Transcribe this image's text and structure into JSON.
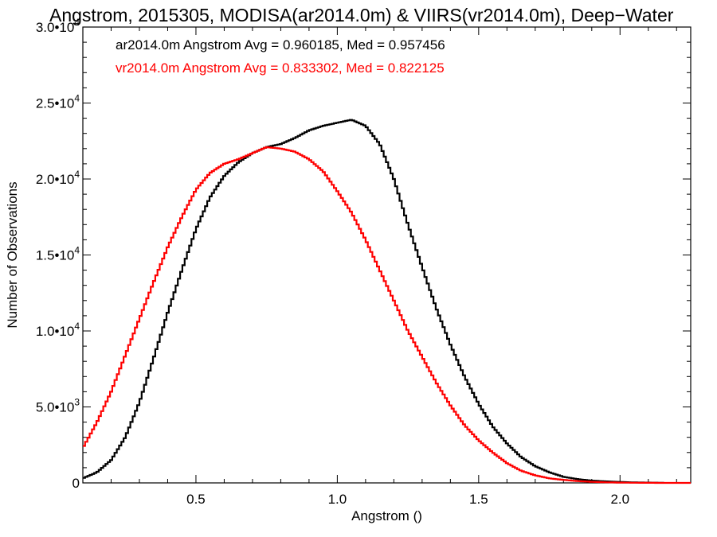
{
  "chart_data": {
    "type": "line",
    "title": "Angstrom, 2015305, MODISA(ar2014.0m) & VIIRS(vr2014.0m), Deep−Water",
    "xlabel": "Angstrom ()",
    "ylabel": "Number of Observations",
    "xlim": [
      0.1,
      2.25
    ],
    "ylim": [
      0,
      30000
    ],
    "x_ticks": [
      0.5,
      1.0,
      1.5,
      2.0
    ],
    "x_tick_labels": [
      "0.5",
      "1.0",
      "1.5",
      "2.0"
    ],
    "y_ticks": [
      0,
      5000,
      10000,
      15000,
      20000,
      25000,
      30000
    ],
    "y_tick_labels": [
      {
        "mantissa": "0",
        "exp": ""
      },
      {
        "mantissa": "5.0•10",
        "exp": "3"
      },
      {
        "mantissa": "1.0•10",
        "exp": "4"
      },
      {
        "mantissa": "1.5•10",
        "exp": "4"
      },
      {
        "mantissa": "2.0•10",
        "exp": "4"
      },
      {
        "mantissa": "2.5•10",
        "exp": "4"
      },
      {
        "mantissa": "3.0•10",
        "exp": "4"
      }
    ],
    "grid": false,
    "legend_position": "top-left",
    "series": [
      {
        "name": "ar2014.0m",
        "legend_text": "ar2014.0m Angstrom Avg = 0.960185, Med = 0.957456",
        "color": "#000000",
        "points": [
          [
            0.1,
            300
          ],
          [
            0.15,
            700
          ],
          [
            0.2,
            1500
          ],
          [
            0.25,
            3000
          ],
          [
            0.3,
            5300
          ],
          [
            0.35,
            8200
          ],
          [
            0.4,
            11200
          ],
          [
            0.45,
            14000
          ],
          [
            0.5,
            16700
          ],
          [
            0.55,
            18800
          ],
          [
            0.6,
            20200
          ],
          [
            0.65,
            21100
          ],
          [
            0.7,
            21700
          ],
          [
            0.75,
            22100
          ],
          [
            0.8,
            22300
          ],
          [
            0.85,
            22700
          ],
          [
            0.9,
            23200
          ],
          [
            0.95,
            23500
          ],
          [
            1.0,
            23700
          ],
          [
            1.05,
            23900
          ],
          [
            1.1,
            23500
          ],
          [
            1.15,
            22300
          ],
          [
            1.2,
            20000
          ],
          [
            1.25,
            17000
          ],
          [
            1.3,
            14200
          ],
          [
            1.35,
            11500
          ],
          [
            1.4,
            9100
          ],
          [
            1.45,
            7000
          ],
          [
            1.5,
            5200
          ],
          [
            1.55,
            3700
          ],
          [
            1.6,
            2600
          ],
          [
            1.65,
            1700
          ],
          [
            1.7,
            1100
          ],
          [
            1.75,
            700
          ],
          [
            1.8,
            400
          ],
          [
            1.85,
            250
          ],
          [
            1.9,
            150
          ],
          [
            1.95,
            100
          ],
          [
            2.0,
            60
          ],
          [
            2.05,
            30
          ],
          [
            2.1,
            20
          ],
          [
            2.15,
            10
          ]
        ]
      },
      {
        "name": "vr2014.0m",
        "legend_text": "vr2014.0m Angstrom Avg = 0.833302, Med = 0.822125",
        "color": "#ff0000",
        "points": [
          [
            0.1,
            2300
          ],
          [
            0.15,
            4000
          ],
          [
            0.2,
            6000
          ],
          [
            0.25,
            8400
          ],
          [
            0.3,
            10800
          ],
          [
            0.35,
            13200
          ],
          [
            0.4,
            15500
          ],
          [
            0.45,
            17500
          ],
          [
            0.5,
            19300
          ],
          [
            0.55,
            20400
          ],
          [
            0.6,
            21000
          ],
          [
            0.65,
            21300
          ],
          [
            0.7,
            21700
          ],
          [
            0.75,
            22100
          ],
          [
            0.8,
            22000
          ],
          [
            0.85,
            21800
          ],
          [
            0.9,
            21300
          ],
          [
            0.95,
            20500
          ],
          [
            1.0,
            19200
          ],
          [
            1.05,
            17800
          ],
          [
            1.1,
            16000
          ],
          [
            1.15,
            14000
          ],
          [
            1.2,
            12000
          ],
          [
            1.25,
            10000
          ],
          [
            1.3,
            8300
          ],
          [
            1.35,
            6600
          ],
          [
            1.4,
            5100
          ],
          [
            1.45,
            3800
          ],
          [
            1.5,
            2800
          ],
          [
            1.55,
            2000
          ],
          [
            1.6,
            1300
          ],
          [
            1.65,
            800
          ],
          [
            1.7,
            500
          ],
          [
            1.75,
            300
          ],
          [
            1.8,
            200
          ],
          [
            1.85,
            120
          ],
          [
            1.9,
            70
          ],
          [
            1.95,
            40
          ],
          [
            2.0,
            20
          ],
          [
            2.05,
            10
          ],
          [
            2.1,
            5
          ],
          [
            2.15,
            0
          ]
        ]
      }
    ]
  }
}
